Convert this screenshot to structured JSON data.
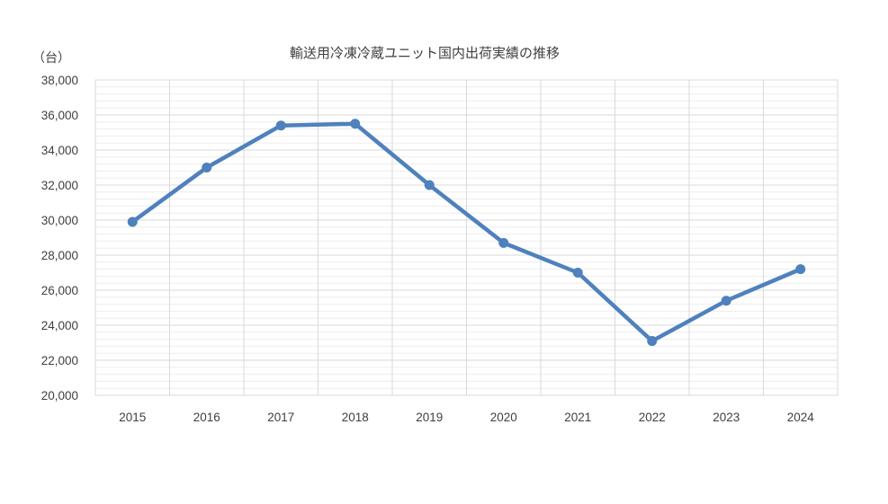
{
  "chart_data": {
    "type": "line",
    "title": "輸送用冷凍冷蔵ユニット国内出荷実績の推移",
    "unit_label": "（台）",
    "xlabel": "",
    "ylabel": "",
    "categories": [
      "2015",
      "2016",
      "2017",
      "2018",
      "2019",
      "2020",
      "2021",
      "2022",
      "2023",
      "2024"
    ],
    "series": [
      {
        "values": [
          29900,
          33000,
          35400,
          35500,
          32000,
          28700,
          27000,
          23100,
          25400,
          27200
        ],
        "color": "#4F81BD"
      }
    ],
    "ylim": [
      20000,
      38000
    ],
    "yticks": [
      "20,000",
      "22,000",
      "24,000",
      "26,000",
      "28,000",
      "30,000",
      "32,000",
      "34,000",
      "36,000",
      "38,000"
    ],
    "grid": true,
    "legend": "none"
  }
}
